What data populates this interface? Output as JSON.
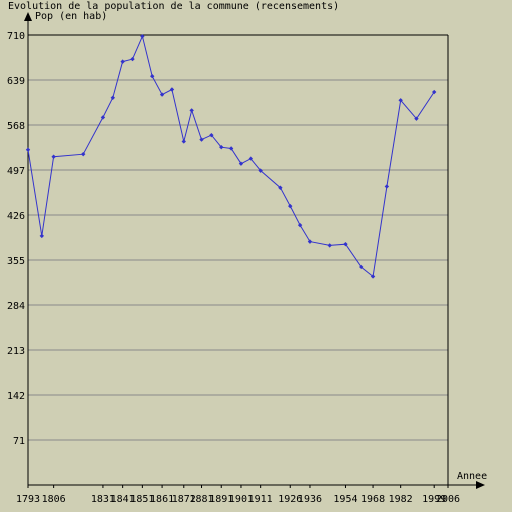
{
  "chart_data": {
    "type": "line",
    "title": "Evolution de la population de la commune (recensements)",
    "ylabel": "Pop (en hab)",
    "xlabel": "Annee",
    "x_ticks": [
      "1793",
      "1806",
      "1831",
      "1841",
      "1851",
      "1861",
      "1872",
      "1881",
      "1891",
      "1901",
      "1911",
      "1926",
      "1936",
      "1954",
      "1968",
      "1982",
      "1999",
      "2006"
    ],
    "y_ticks": [
      "71",
      "142",
      "213",
      "284",
      "355",
      "426",
      "497",
      "568",
      "639",
      "710"
    ],
    "ylim": [
      0,
      710
    ],
    "grid": true,
    "series": [
      {
        "color": "#3333cc",
        "x": [
          1793,
          1800,
          1806,
          1821,
          1831,
          1836,
          1841,
          1846,
          1851,
          1856,
          1861,
          1866,
          1872,
          1876,
          1881,
          1886,
          1891,
          1896,
          1901,
          1906,
          1911,
          1921,
          1926,
          1931,
          1936,
          1946,
          1954,
          1962,
          1968,
          1975,
          1982,
          1990,
          1999
        ],
        "values": [
          529,
          393,
          518,
          522,
          580,
          611,
          668,
          672,
          708,
          645,
          616,
          624,
          542,
          591,
          545,
          552,
          533,
          531,
          507,
          515,
          496,
          469,
          440,
          410,
          384,
          378,
          380,
          344,
          329,
          471,
          607,
          578,
          620
        ]
      }
    ]
  }
}
